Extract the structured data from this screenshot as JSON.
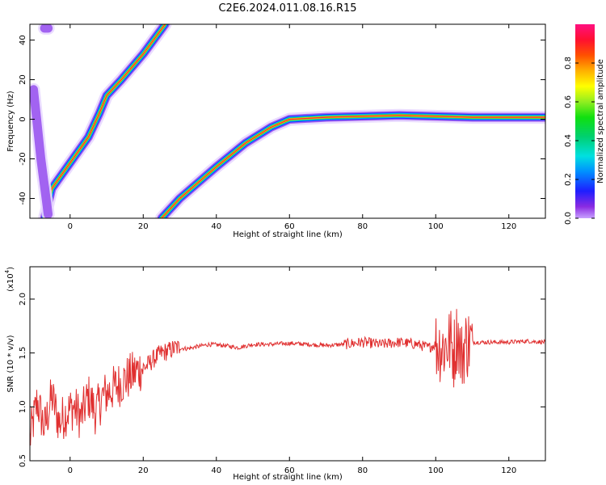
{
  "title": "C2E6.2024.011.08.16.R15",
  "colors": {
    "snr_line": "#e03030",
    "axes": "#000000",
    "background": "#ffffff"
  },
  "chart_data": [
    {
      "type": "heatmap",
      "xlabel": "Height of straight line (km)",
      "ylabel": "Frequency (Hz)",
      "xlim": [
        -11,
        130
      ],
      "ylim": [
        -50,
        48
      ],
      "x_ticks": [
        0,
        20,
        40,
        60,
        80,
        100,
        120
      ],
      "y_ticks": [
        -40,
        -20,
        0,
        20,
        40
      ],
      "colormap": "rainbow",
      "colorbar": {
        "label": "Normalized spectral amplitude",
        "range": [
          0,
          1
        ],
        "ticks": [
          "0.0",
          "0.2",
          "0.4",
          "0.6",
          "0.8"
        ]
      },
      "ridges": [
        {
          "x": [
            -7,
            -5,
            0,
            5,
            8,
            10,
            14,
            20,
            26
          ],
          "y": [
            -50,
            -35,
            -22,
            -9,
            3,
            12,
            20,
            33,
            48
          ]
        },
        {
          "x": [
            25,
            30,
            40,
            48,
            55,
            60,
            70,
            90,
            110,
            130
          ],
          "y": [
            -50,
            -40,
            -24,
            -12,
            -4,
            0,
            1,
            2,
            1,
            1
          ]
        },
        {
          "x": [
            -10,
            -8,
            -6
          ],
          "y": [
            15,
            -20,
            -48
          ]
        },
        {
          "x": [
            -7,
            -6
          ],
          "y": [
            46,
            46
          ]
        }
      ]
    },
    {
      "type": "line",
      "xlabel": "Height of straight line (km)",
      "ylabel": "SNR (10 * v/v)",
      "y_scale_label": "(x10",
      "y_scale_exp": "4",
      "y_scale_close": ")",
      "xlim": [
        -11,
        130
      ],
      "ylim": [
        0.5,
        2.3
      ],
      "x_ticks": [
        0,
        20,
        40,
        60,
        80,
        100,
        120
      ],
      "y_ticks": [
        0.5,
        1.0,
        1.5,
        2.0
      ],
      "series": [
        {
          "x": [
            -11,
            -9,
            -7,
            -5,
            -3,
            -1,
            1,
            3,
            5,
            7,
            9,
            11,
            13,
            15,
            17,
            19,
            21,
            23,
            25,
            27,
            29,
            32,
            35,
            38,
            42,
            46,
            50,
            55,
            60,
            65,
            70,
            75,
            80,
            85,
            90,
            95,
            98,
            100,
            102,
            104,
            105,
            106,
            107,
            108,
            109,
            110,
            115,
            120,
            125,
            130
          ],
          "y": [
            0.7,
            1.05,
            0.8,
            1.1,
            0.85,
            0.95,
            1.0,
            0.9,
            1.1,
            0.95,
            1.1,
            1.15,
            1.2,
            1.25,
            1.3,
            1.35,
            1.38,
            1.45,
            1.5,
            1.52,
            1.55,
            1.54,
            1.56,
            1.58,
            1.57,
            1.55,
            1.58,
            1.58,
            1.59,
            1.58,
            1.57,
            1.58,
            1.6,
            1.58,
            1.6,
            1.58,
            1.55,
            1.58,
            1.55,
            1.6,
            1.5,
            1.7,
            1.45,
            1.58,
            1.6,
            1.6,
            1.6,
            1.6,
            1.61,
            1.6
          ]
        }
      ]
    }
  ]
}
